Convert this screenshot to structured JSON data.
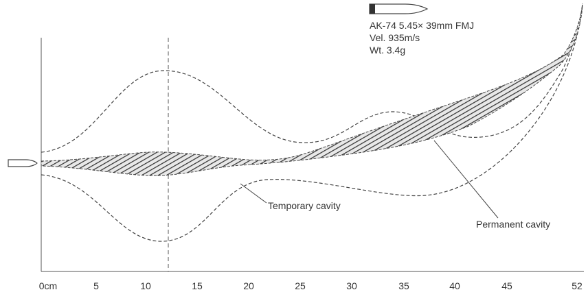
{
  "header": {
    "lines": [
      "AK-74 5.45× 39mm FMJ",
      "Vel. 935m/s",
      "Wt. 3.4g"
    ]
  },
  "labels": {
    "temporary": "Temporary cavity",
    "permanent": "Permanent cavity"
  },
  "axis": {
    "ticks": [
      "0cm",
      "5",
      "10",
      "15",
      "20",
      "25",
      "30",
      "35",
      "40",
      "45",
      "52"
    ]
  }
}
